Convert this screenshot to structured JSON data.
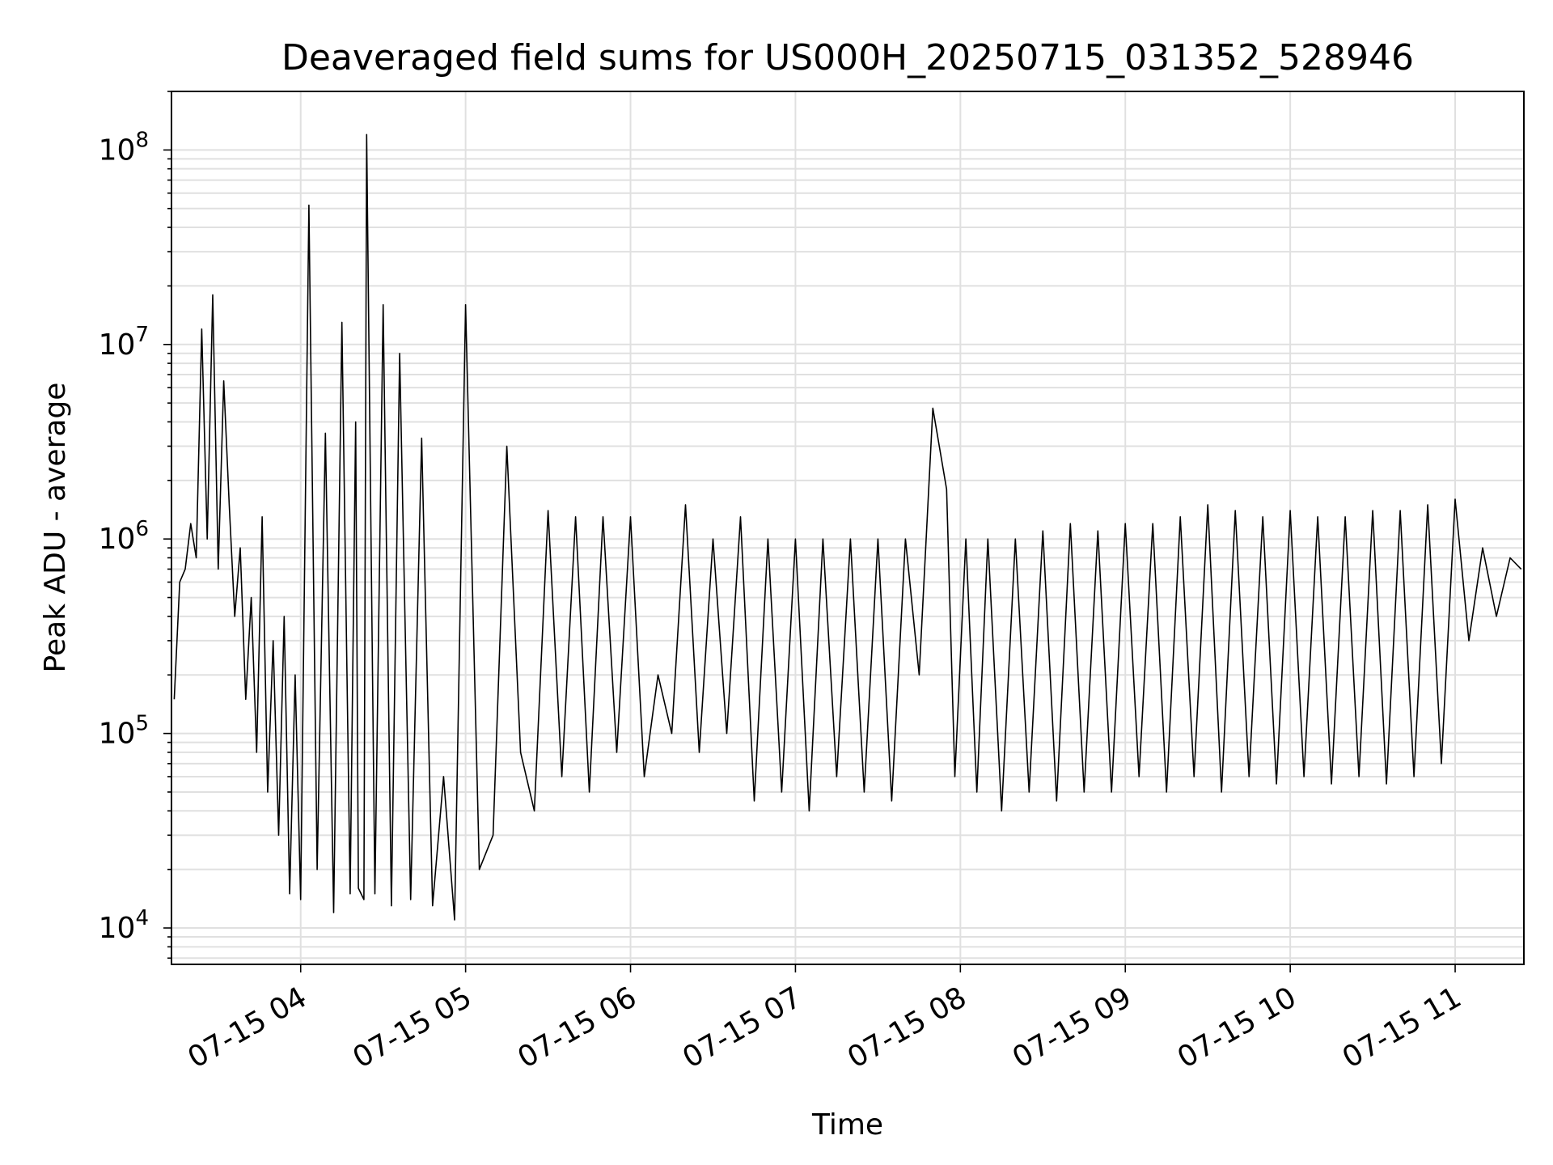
{
  "chart_data": {
    "type": "line",
    "title": "Deaveraged field sums for US000H_20250715_031352_528946",
    "xlabel": "Time",
    "ylabel": "Peak ADU - average",
    "yscale": "log",
    "ylim": [
      6500,
      200000000
    ],
    "xlim": [
      "2025-07-15 03:13",
      "2025-07-15 11:25"
    ],
    "grid": true,
    "legend": "none",
    "x_ticks": [
      "07-15 04",
      "07-15 05",
      "07-15 06",
      "07-15 07",
      "07-15 08",
      "07-15 09",
      "07-15 10",
      "07-15 11"
    ],
    "y_ticks": [
      {
        "base": "10",
        "exp": "4"
      },
      {
        "base": "10",
        "exp": "5"
      },
      {
        "base": "10",
        "exp": "6"
      },
      {
        "base": "10",
        "exp": "7"
      },
      {
        "base": "10",
        "exp": "8"
      }
    ],
    "line_color": "#000000",
    "grid_color": "#e0e0e0",
    "series": [
      {
        "x": [
          "2025-07-15 03:14",
          "2025-07-15 03:16",
          "2025-07-15 03:18",
          "2025-07-15 03:20",
          "2025-07-15 03:22",
          "2025-07-15 03:24",
          "2025-07-15 03:26",
          "2025-07-15 03:28",
          "2025-07-15 03:30",
          "2025-07-15 03:32",
          "2025-07-15 03:34",
          "2025-07-15 03:36",
          "2025-07-15 03:38",
          "2025-07-15 03:40",
          "2025-07-15 03:42",
          "2025-07-15 03:44",
          "2025-07-15 03:46",
          "2025-07-15 03:48",
          "2025-07-15 03:50",
          "2025-07-15 03:52",
          "2025-07-15 03:54",
          "2025-07-15 03:56",
          "2025-07-15 03:58",
          "2025-07-15 04:00",
          "2025-07-15 04:03",
          "2025-07-15 04:06",
          "2025-07-15 04:09",
          "2025-07-15 04:12",
          "2025-07-15 04:15",
          "2025-07-15 04:18",
          "2025-07-15 04:20",
          "2025-07-15 04:21",
          "2025-07-15 04:23",
          "2025-07-15 04:24",
          "2025-07-15 04:27",
          "2025-07-15 04:30",
          "2025-07-15 04:33",
          "2025-07-15 04:36",
          "2025-07-15 04:40",
          "2025-07-15 04:44",
          "2025-07-15 04:48",
          "2025-07-15 04:52",
          "2025-07-15 04:56",
          "2025-07-15 05:00",
          "2025-07-15 05:05",
          "2025-07-15 05:10",
          "2025-07-15 05:15",
          "2025-07-15 05:20",
          "2025-07-15 05:25",
          "2025-07-15 05:30",
          "2025-07-15 05:35",
          "2025-07-15 05:40",
          "2025-07-15 05:45",
          "2025-07-15 05:50",
          "2025-07-15 05:55",
          "2025-07-15 06:00",
          "2025-07-15 06:05",
          "2025-07-15 06:10",
          "2025-07-15 06:15",
          "2025-07-15 06:20",
          "2025-07-15 06:25",
          "2025-07-15 06:30",
          "2025-07-15 06:35",
          "2025-07-15 06:40",
          "2025-07-15 06:45",
          "2025-07-15 06:50",
          "2025-07-15 06:55",
          "2025-07-15 07:00",
          "2025-07-15 07:05",
          "2025-07-15 07:10",
          "2025-07-15 07:15",
          "2025-07-15 07:20",
          "2025-07-15 07:25",
          "2025-07-15 07:30",
          "2025-07-15 07:35",
          "2025-07-15 07:40",
          "2025-07-15 07:45",
          "2025-07-15 07:50",
          "2025-07-15 07:55",
          "2025-07-15 07:58",
          "2025-07-15 08:02",
          "2025-07-15 08:06",
          "2025-07-15 08:10",
          "2025-07-15 08:15",
          "2025-07-15 08:20",
          "2025-07-15 08:25",
          "2025-07-15 08:30",
          "2025-07-15 08:35",
          "2025-07-15 08:40",
          "2025-07-15 08:45",
          "2025-07-15 08:50",
          "2025-07-15 08:55",
          "2025-07-15 09:00",
          "2025-07-15 09:05",
          "2025-07-15 09:10",
          "2025-07-15 09:15",
          "2025-07-15 09:20",
          "2025-07-15 09:25",
          "2025-07-15 09:30",
          "2025-07-15 09:35",
          "2025-07-15 09:40",
          "2025-07-15 09:45",
          "2025-07-15 09:50",
          "2025-07-15 09:55",
          "2025-07-15 10:00",
          "2025-07-15 10:05",
          "2025-07-15 10:10",
          "2025-07-15 10:15",
          "2025-07-15 10:20",
          "2025-07-15 10:25",
          "2025-07-15 10:30",
          "2025-07-15 10:35",
          "2025-07-15 10:40",
          "2025-07-15 10:45",
          "2025-07-15 10:50",
          "2025-07-15 10:55",
          "2025-07-15 11:00",
          "2025-07-15 11:05",
          "2025-07-15 11:10",
          "2025-07-15 11:15",
          "2025-07-15 11:20",
          "2025-07-15 11:24"
        ],
        "values": [
          150000,
          600000,
          700000,
          1200000,
          800000,
          12000000,
          1000000,
          18000000,
          700000,
          6500000,
          1500000,
          400000,
          900000,
          150000,
          500000,
          80000,
          1300000,
          50000,
          300000,
          30000,
          400000,
          15000,
          200000,
          14000,
          52000000,
          20000,
          3500000,
          12000,
          13000000,
          15000,
          4000000,
          16000,
          14000,
          120000000,
          15000,
          16000000,
          13000,
          9000000,
          14000,
          3300000,
          13000,
          60000,
          11000,
          16000000,
          20000,
          30000,
          3000000,
          80000,
          40000,
          1400000,
          60000,
          1300000,
          50000,
          1300000,
          80000,
          1300000,
          60000,
          200000,
          100000,
          1500000,
          80000,
          1000000,
          100000,
          1300000,
          45000,
          1000000,
          50000,
          1000000,
          40000,
          1000000,
          60000,
          1000000,
          50000,
          1000000,
          45000,
          1000000,
          200000,
          4700000,
          1800000,
          60000,
          1000000,
          50000,
          1000000,
          40000,
          1000000,
          50000,
          1100000,
          45000,
          1200000,
          50000,
          1100000,
          50000,
          1200000,
          60000,
          1200000,
          50000,
          1300000,
          60000,
          1500000,
          50000,
          1400000,
          60000,
          1300000,
          55000,
          1400000,
          60000,
          1300000,
          55000,
          1300000,
          60000,
          1400000,
          55000,
          1400000,
          60000,
          1500000,
          70000,
          1600000,
          300000,
          900000,
          400000,
          800000,
          700000
        ]
      }
    ]
  }
}
